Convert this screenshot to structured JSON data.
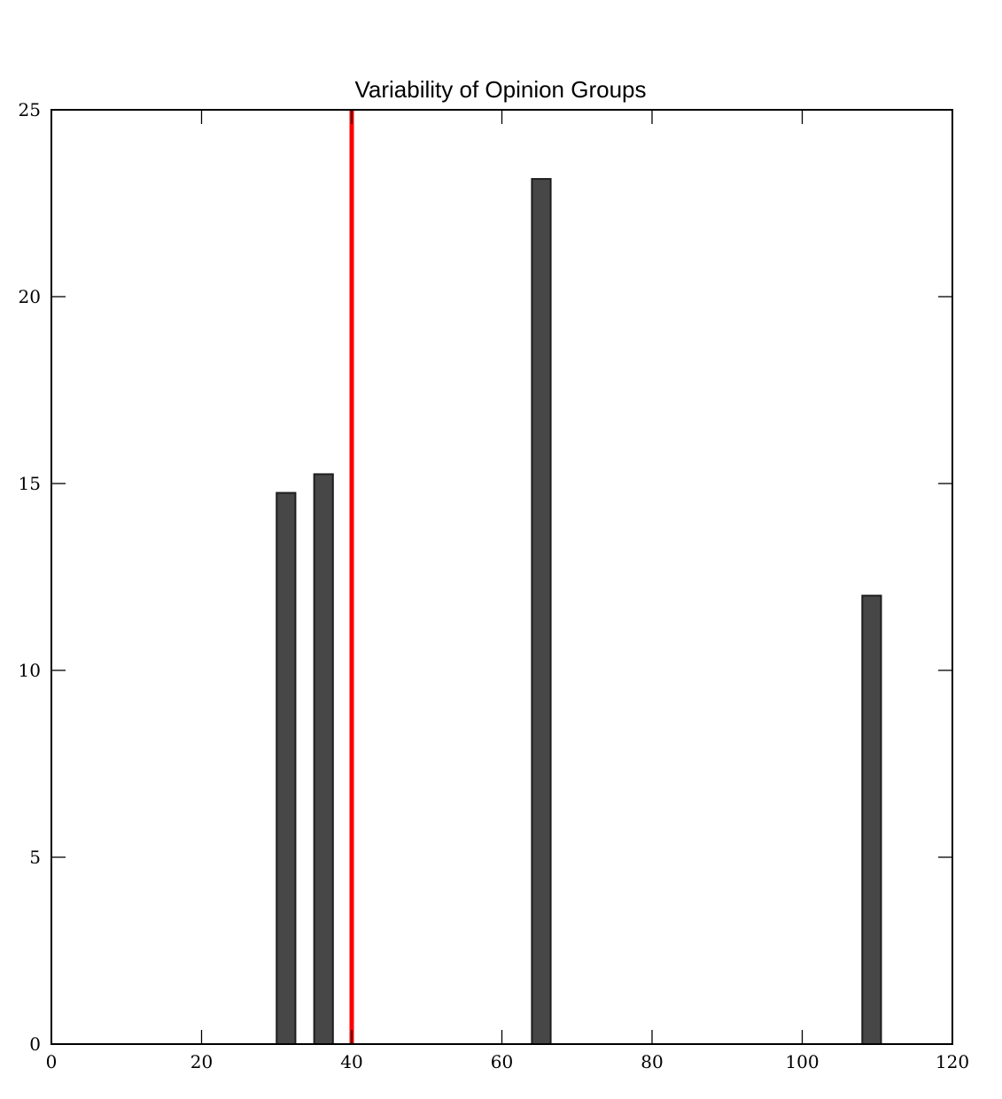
{
  "chart_data": {
    "type": "bar",
    "title": "Variability of Opinion Groups",
    "xlabel": "",
    "ylabel": "",
    "xlim": [
      0,
      120
    ],
    "ylim": [
      0,
      25
    ],
    "x_ticks": [
      "0",
      "20",
      "40",
      "60",
      "80",
      "100",
      "120"
    ],
    "y_ticks": [
      "0",
      "5",
      "10",
      "15",
      "20",
      "25"
    ],
    "bar_width": 2.5,
    "bars": [
      {
        "x": 30,
        "value": 14.75
      },
      {
        "x": 35,
        "value": 15.25
      },
      {
        "x": 64,
        "value": 23.15
      },
      {
        "x": 108,
        "value": 12.0
      }
    ],
    "reference_line": {
      "x": 40,
      "color": "#ff0000"
    },
    "bar_color": "#474747",
    "grid": false,
    "legend": "none"
  }
}
